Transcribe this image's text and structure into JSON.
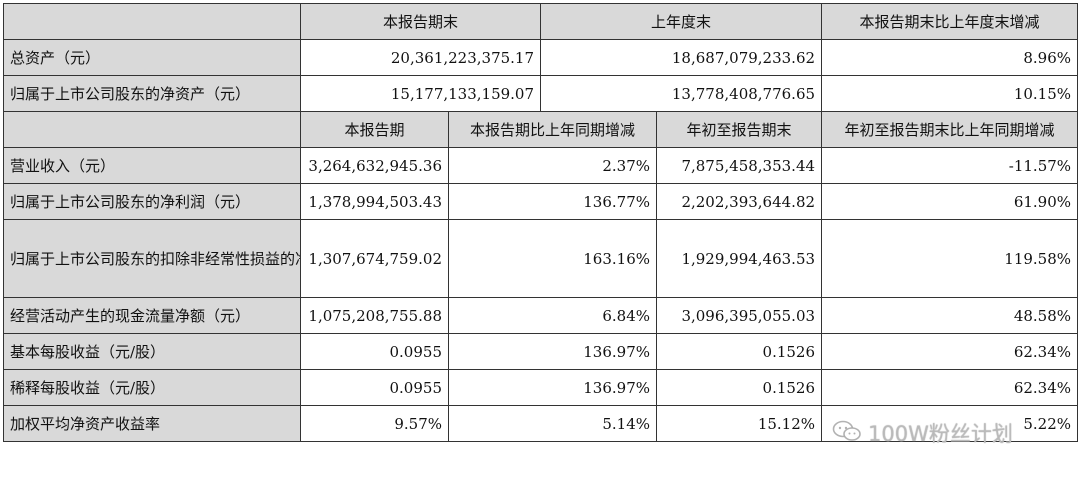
{
  "section1": {
    "headers": [
      "",
      "本报告期末",
      "上年度末",
      "本报告期末比上年度末增减"
    ],
    "rows": [
      {
        "label": "总资产（元）",
        "current": "20,361,223,375.17",
        "prior": "18,687,079,233.62",
        "change": "8.96%"
      },
      {
        "label": "归属于上市公司股东的净资产（元）",
        "current": "15,177,133,159.07",
        "prior": "13,778,408,776.65",
        "change": "10.15%"
      }
    ]
  },
  "section2": {
    "headers": [
      "",
      "本报告期",
      "本报告期比上年同期增减",
      "年初至报告期末",
      "年初至报告期末比上年同期增减"
    ],
    "rows": [
      {
        "label": "营业收入（元）",
        "period": "3,264,632,945.36",
        "period_change": "2.37%",
        "ytd": "7,875,458,353.44",
        "ytd_change": "-11.57%"
      },
      {
        "label": "归属于上市公司股东的净利润（元）",
        "period": "1,378,994,503.43",
        "period_change": "136.77%",
        "ytd": "2,202,393,644.82",
        "ytd_change": "61.90%"
      },
      {
        "label": "归属于上市公司股东的扣除非经常性损益的净利润（元）",
        "period": "1,307,674,759.02",
        "period_change": "163.16%",
        "ytd": "1,929,994,463.53",
        "ytd_change": "119.58%"
      },
      {
        "label": "经营活动产生的现金流量净额（元）",
        "period": "1,075,208,755.88",
        "period_change": "6.84%",
        "ytd": "3,096,395,055.03",
        "ytd_change": "48.58%"
      },
      {
        "label": "基本每股收益（元/股）",
        "period": "0.0955",
        "period_change": "136.97%",
        "ytd": "0.1526",
        "ytd_change": "62.34%"
      },
      {
        "label": "稀释每股收益（元/股）",
        "period": "0.0955",
        "period_change": "136.97%",
        "ytd": "0.1526",
        "ytd_change": "62.34%"
      },
      {
        "label": "加权平均净资产收益率",
        "period": "9.57%",
        "period_change": "5.14%",
        "ytd": "15.12%",
        "ytd_change": "5.22%"
      }
    ]
  },
  "watermark": {
    "text": "100W粉丝计划",
    "icon": "wechat-icon"
  }
}
